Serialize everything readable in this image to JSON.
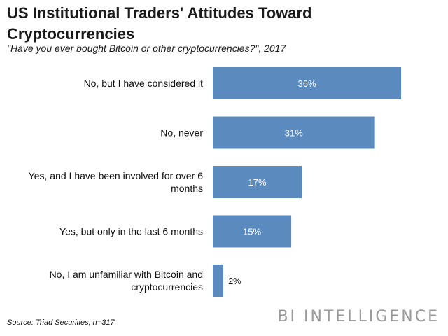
{
  "title": "US Institutional Traders' Attitudes Toward Cryptocurrencies",
  "subtitle": "\"Have you ever bought Bitcoin or other cryptocurrencies?\", 2017",
  "source": "Source: Triad Securities, n=317",
  "brand": "BI INTELLIGENCE",
  "chart_data": {
    "type": "bar",
    "orientation": "horizontal",
    "categories": [
      [
        "No, but I have considered it"
      ],
      [
        "No, never"
      ],
      [
        "Yes, and I have been involved for over 6",
        "months"
      ],
      [
        "Yes, but only in the last 6 months"
      ],
      [
        "No, I am unfamiliar with Bitcoin and",
        "cryptocurrencies"
      ]
    ],
    "values": [
      36,
      31,
      17,
      15,
      2
    ],
    "value_labels": [
      "36%",
      "31%",
      "17%",
      "15%",
      "2%"
    ],
    "xlim": [
      0,
      36
    ],
    "bar_color": "#5b8bbe",
    "label_color_inside": "#ffffff",
    "label_color_outside": "#111111",
    "grid": false,
    "legend": "none"
  }
}
